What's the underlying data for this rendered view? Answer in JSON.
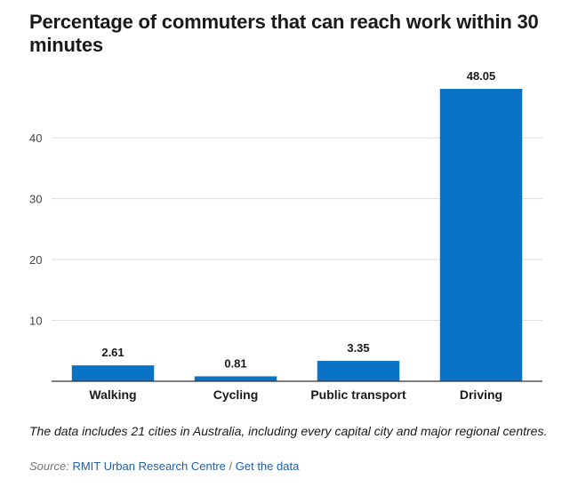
{
  "chart_data": {
    "type": "bar",
    "title": "Percentage of commuters that can reach work within 30 minutes",
    "xlabel": "",
    "ylabel": "",
    "categories": [
      "Walking",
      "Cycling",
      "Public transport",
      "Driving"
    ],
    "values": [
      2.61,
      0.81,
      3.35,
      48.05
    ],
    "value_labels": [
      "2.61",
      "0.81",
      "3.35",
      "48.05"
    ],
    "y_ticks": [
      10,
      20,
      30,
      40
    ],
    "ylim": [
      0,
      48.05
    ],
    "grid": true,
    "legend": "none",
    "bar_color": "#0a73c6"
  },
  "footnote": "The data includes 21  cities in Australia, including every capital city and major regional centres.",
  "source": {
    "label": "Source:",
    "org_link": "RMIT Urban Research Centre",
    "separator": "/",
    "data_link": "Get the data"
  },
  "colors": {
    "link": "#1f5fa8",
    "gridline": "#dddddd",
    "axis": "#333333"
  }
}
